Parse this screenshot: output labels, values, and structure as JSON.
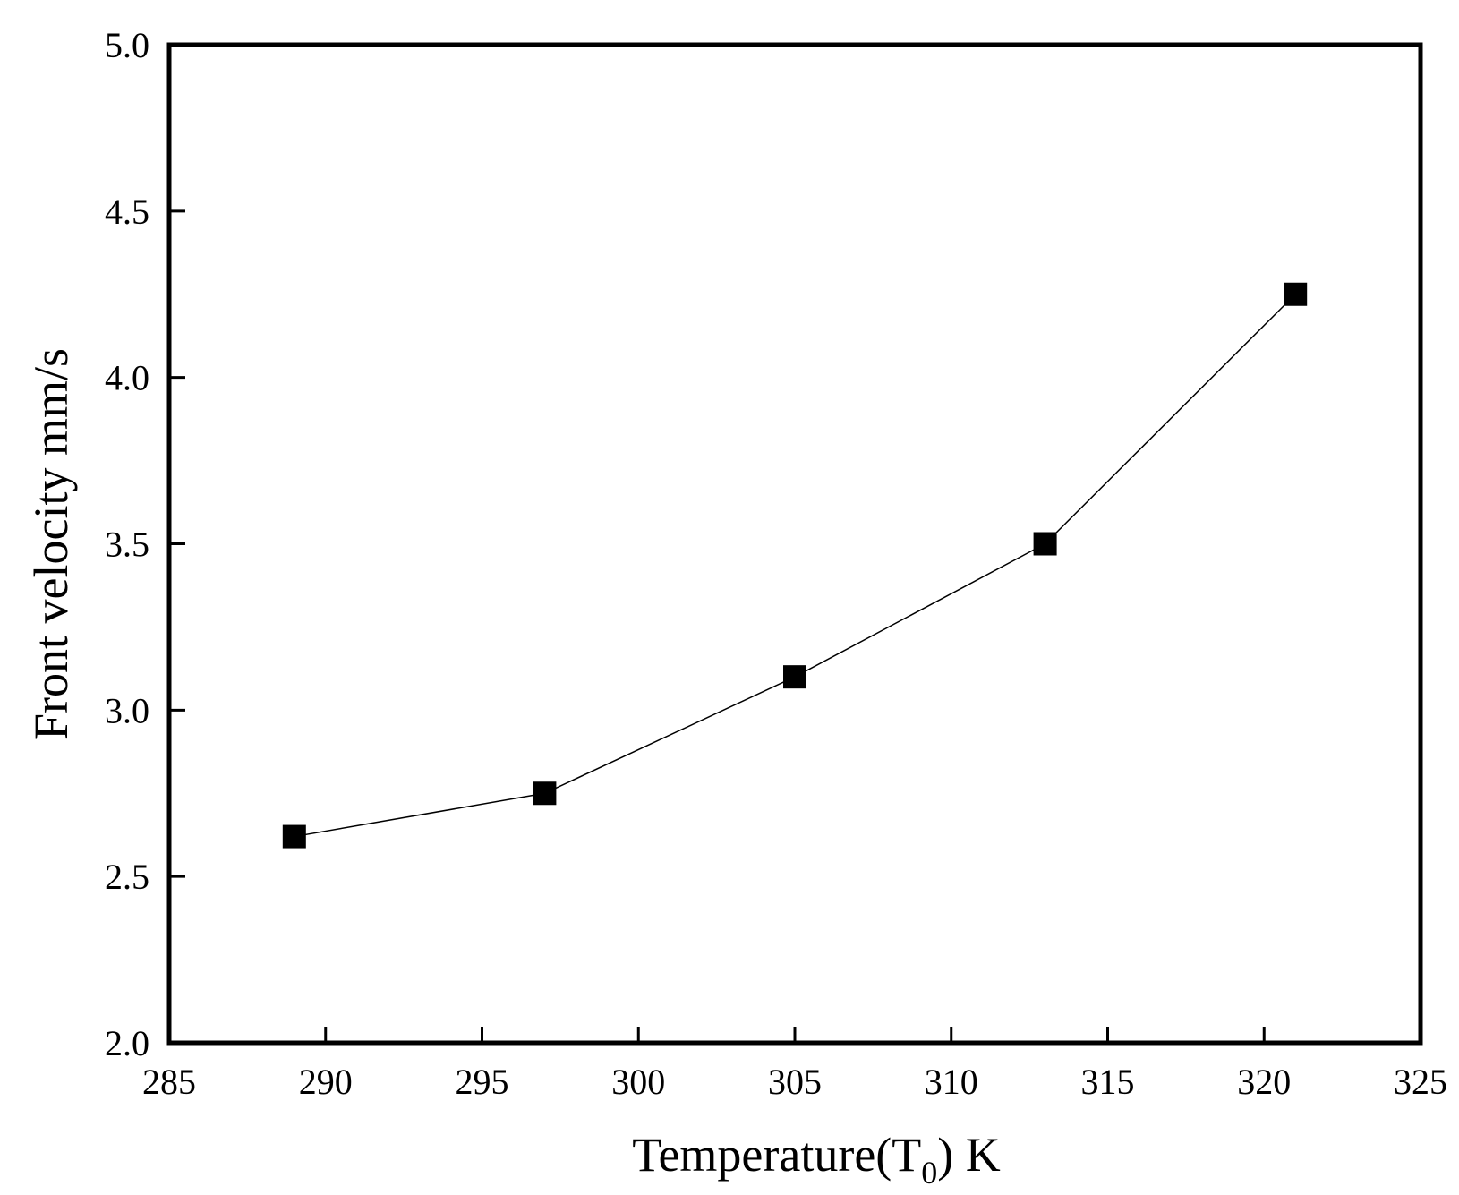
{
  "chart_data": {
    "type": "line",
    "title": "",
    "xlabel": {
      "main": "Temperature(T",
      "sub": "0",
      "tail": ")  K"
    },
    "ylabel": "Front velocity  mm/s",
    "xlim": [
      285,
      325
    ],
    "ylim": [
      2.0,
      5.0
    ],
    "xticks": [
      285,
      290,
      295,
      300,
      305,
      310,
      315,
      320,
      325
    ],
    "yticks": [
      2.0,
      2.5,
      3.0,
      3.5,
      4.0,
      4.5,
      5.0
    ],
    "xtick_labels": [
      "285",
      "290",
      "295",
      "300",
      "305",
      "310",
      "315",
      "320",
      "325"
    ],
    "ytick_labels": [
      "2.0",
      "2.5",
      "3.0",
      "3.5",
      "4.0",
      "4.5",
      "5.0"
    ],
    "grid": false,
    "marker": "filled-square",
    "colors": {
      "line": "#000000",
      "marker": "#000000",
      "axes": "#000000"
    },
    "series": [
      {
        "x": [
          289,
          297,
          305,
          313,
          321
        ],
        "y": [
          2.62,
          2.75,
          3.1,
          3.5,
          4.25
        ]
      }
    ]
  }
}
